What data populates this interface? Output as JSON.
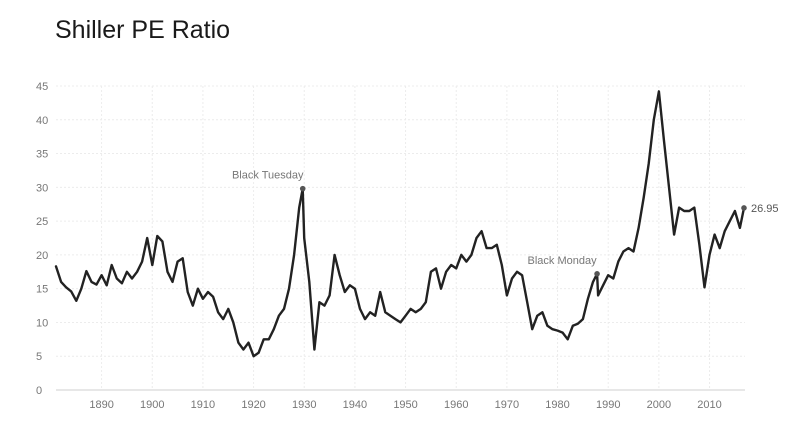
{
  "chart_data": {
    "type": "line",
    "title": "Shiller PE Ratio",
    "xlabel": "",
    "ylabel": "",
    "xlim": [
      1881,
      2017
    ],
    "ylim": [
      0,
      45
    ],
    "grid": true,
    "y_ticks": [
      "0",
      "5",
      "10",
      "15",
      "20",
      "25",
      "30",
      "35",
      "40",
      "45"
    ],
    "x_ticks": [
      "1890",
      "1900",
      "1910",
      "1920",
      "1930",
      "1940",
      "1950",
      "1960",
      "1970",
      "1980",
      "1990",
      "2000",
      "2010"
    ],
    "series": [
      {
        "name": "Shiller PE",
        "color": "#222222",
        "x": [
          1881,
          1882,
          1883,
          1884,
          1885,
          1886,
          1887,
          1888,
          1889,
          1890,
          1891,
          1892,
          1893,
          1894,
          1895,
          1896,
          1897,
          1898,
          1899,
          1900,
          1901,
          1902,
          1903,
          1904,
          1905,
          1906,
          1907,
          1908,
          1909,
          1910,
          1911,
          1912,
          1913,
          1914,
          1915,
          1916,
          1917,
          1918,
          1919,
          1920,
          1921,
          1922,
          1923,
          1924,
          1925,
          1926,
          1927,
          1928,
          1929,
          1929.7,
          1930,
          1931,
          1932,
          1933,
          1934,
          1935,
          1936,
          1937,
          1938,
          1939,
          1940,
          1941,
          1942,
          1943,
          1944,
          1945,
          1946,
          1947,
          1948,
          1949,
          1950,
          1951,
          1952,
          1953,
          1954,
          1955,
          1956,
          1957,
          1958,
          1959,
          1960,
          1961,
          1962,
          1963,
          1964,
          1965,
          1966,
          1967,
          1968,
          1969,
          1970,
          1971,
          1972,
          1973,
          1974,
          1975,
          1976,
          1977,
          1978,
          1979,
          1980,
          1981,
          1982,
          1983,
          1984,
          1985,
          1986,
          1987,
          1987.8,
          1988,
          1989,
          1990,
          1991,
          1992,
          1993,
          1994,
          1995,
          1996,
          1997,
          1998,
          1999,
          2000,
          2001,
          2002,
          2003,
          2004,
          2005,
          2006,
          2007,
          2008,
          2009,
          2010,
          2011,
          2012,
          2013,
          2014,
          2015,
          2016,
          2016.8
        ],
        "values": [
          18.3,
          16.0,
          15.2,
          14.6,
          13.2,
          15.0,
          17.6,
          16.0,
          15.6,
          17.0,
          15.5,
          18.5,
          16.5,
          15.8,
          17.5,
          16.5,
          17.5,
          19.0,
          22.5,
          18.5,
          22.8,
          22.0,
          17.5,
          16.0,
          19.0,
          19.5,
          14.5,
          12.5,
          15.0,
          13.5,
          14.5,
          13.8,
          11.5,
          10.5,
          12.0,
          10.0,
          7.0,
          6.0,
          7.0,
          5.0,
          5.5,
          7.5,
          7.5,
          9.0,
          11.0,
          12.0,
          15.0,
          20.0,
          27.0,
          29.8,
          22.5,
          16.0,
          6.0,
          13.0,
          12.5,
          14.0,
          20.0,
          17.0,
          14.5,
          15.5,
          15.0,
          12.0,
          10.5,
          11.5,
          11.0,
          14.5,
          11.5,
          11.0,
          10.5,
          10.0,
          11.0,
          12.0,
          11.5,
          12.0,
          13.0,
          17.5,
          18.0,
          15.0,
          17.5,
          18.5,
          18.0,
          20.0,
          19.0,
          20.0,
          22.5,
          23.5,
          21.0,
          21.0,
          21.5,
          18.5,
          14.0,
          16.5,
          17.5,
          17.0,
          13.0,
          9.0,
          11.0,
          11.5,
          9.5,
          9.0,
          8.8,
          8.5,
          7.5,
          9.5,
          9.8,
          10.5,
          13.5,
          16.0,
          17.2,
          14.0,
          15.5,
          17.0,
          16.5,
          19.0,
          20.5,
          21.0,
          20.5,
          24.0,
          28.5,
          33.5,
          40.0,
          44.2,
          37.0,
          30.0,
          23.0,
          27.0,
          26.5,
          26.5,
          27.0,
          21.5,
          15.2,
          20.0,
          23.0,
          21.0,
          23.5,
          25.0,
          26.5,
          24.0,
          26.95
        ]
      }
    ],
    "annotations": [
      {
        "label": "Black Tuesday",
        "x": 1929.7,
        "y": 29.8
      },
      {
        "label": "Black Monday",
        "x": 1987.8,
        "y": 17.2
      }
    ],
    "end_label": "26.95"
  }
}
